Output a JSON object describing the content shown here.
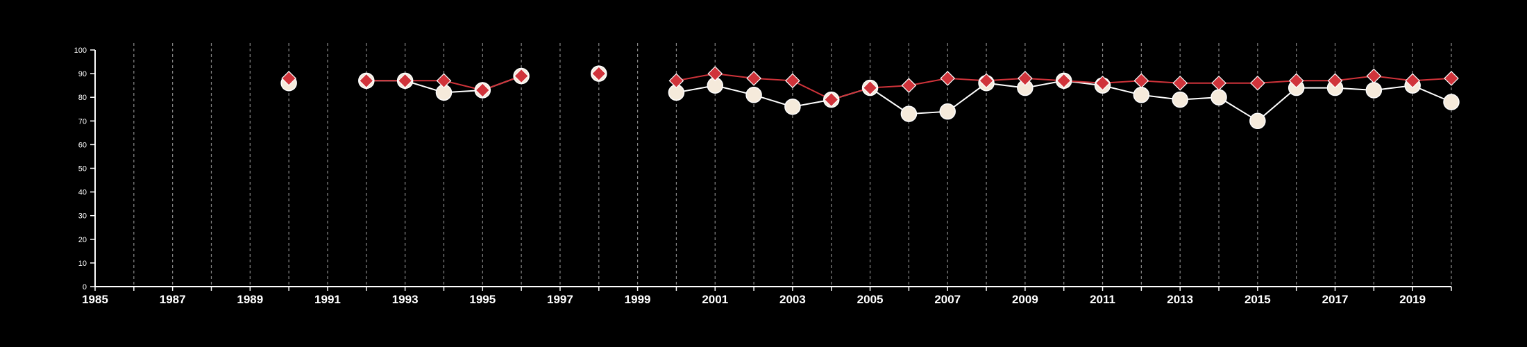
{
  "chart_data": {
    "type": "line",
    "title": "",
    "xlabel": "",
    "ylabel": "",
    "xlim": [
      1985,
      2020
    ],
    "ylim": [
      0,
      100
    ],
    "x_ticks": [
      "1985",
      "1987",
      "1989",
      "1991",
      "1993",
      "1995",
      "1997",
      "1999",
      "2001",
      "2003",
      "2005",
      "2007",
      "2009",
      "2011",
      "2013",
      "2015",
      "2017",
      "2019"
    ],
    "y_ticks": [
      "0",
      "10",
      "20",
      "30",
      "40",
      "50",
      "60",
      "70",
      "80",
      "90",
      "100"
    ],
    "vertical_gridlines": "dashed, every year",
    "background": "#000000",
    "series": [
      {
        "marker": "circle",
        "color": "#f5eadb",
        "line_color": "#ffffff",
        "points": [
          {
            "x": 1990,
            "y": 86
          },
          {
            "x": 1992,
            "y": 87
          },
          {
            "x": 1993,
            "y": 87
          },
          {
            "x": 1994,
            "y": 82
          },
          {
            "x": 1995,
            "y": 83
          },
          {
            "x": 1996,
            "y": 89
          },
          {
            "x": 1998,
            "y": 90
          },
          {
            "x": 2000,
            "y": 82
          },
          {
            "x": 2001,
            "y": 85
          },
          {
            "x": 2002,
            "y": 81
          },
          {
            "x": 2003,
            "y": 76
          },
          {
            "x": 2004,
            "y": 79
          },
          {
            "x": 2005,
            "y": 84
          },
          {
            "x": 2006,
            "y": 73
          },
          {
            "x": 2007,
            "y": 74
          },
          {
            "x": 2008,
            "y": 86
          },
          {
            "x": 2009,
            "y": 84
          },
          {
            "x": 2010,
            "y": 87
          },
          {
            "x": 2011,
            "y": 85
          },
          {
            "x": 2012,
            "y": 81
          },
          {
            "x": 2013,
            "y": 79
          },
          {
            "x": 2014,
            "y": 80
          },
          {
            "x": 2015,
            "y": 70
          },
          {
            "x": 2016,
            "y": 84
          },
          {
            "x": 2017,
            "y": 84
          },
          {
            "x": 2018,
            "y": 83
          },
          {
            "x": 2019,
            "y": 85
          },
          {
            "x": 2020,
            "y": 78
          }
        ]
      },
      {
        "marker": "diamond",
        "color": "#d0333a",
        "line_color": "#d0333a",
        "points": [
          {
            "x": 1990,
            "y": 88
          },
          {
            "x": 1992,
            "y": 87
          },
          {
            "x": 1993,
            "y": 87
          },
          {
            "x": 1994,
            "y": 87
          },
          {
            "x": 1995,
            "y": 83
          },
          {
            "x": 1996,
            "y": 89
          },
          {
            "x": 1998,
            "y": 90
          },
          {
            "x": 2000,
            "y": 87
          },
          {
            "x": 2001,
            "y": 90
          },
          {
            "x": 2002,
            "y": 88
          },
          {
            "x": 2003,
            "y": 87
          },
          {
            "x": 2004,
            "y": 79
          },
          {
            "x": 2005,
            "y": 84
          },
          {
            "x": 2006,
            "y": 85
          },
          {
            "x": 2007,
            "y": 88
          },
          {
            "x": 2008,
            "y": 87
          },
          {
            "x": 2009,
            "y": 88
          },
          {
            "x": 2010,
            "y": 87
          },
          {
            "x": 2011,
            "y": 86
          },
          {
            "x": 2012,
            "y": 87
          },
          {
            "x": 2013,
            "y": 86
          },
          {
            "x": 2014,
            "y": 86
          },
          {
            "x": 2015,
            "y": 86
          },
          {
            "x": 2016,
            "y": 87
          },
          {
            "x": 2017,
            "y": 87
          },
          {
            "x": 2018,
            "y": 89
          },
          {
            "x": 2019,
            "y": 87
          },
          {
            "x": 2020,
            "y": 88
          }
        ]
      }
    ]
  }
}
